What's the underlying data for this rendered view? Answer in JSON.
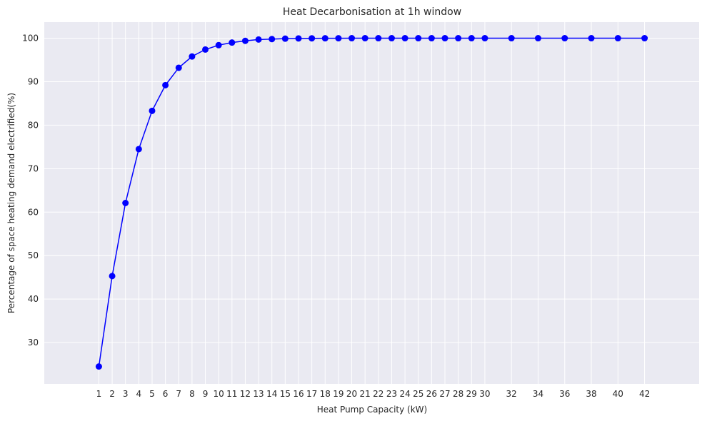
{
  "chart_data": {
    "type": "line",
    "title": "Heat Decarbonisation at 1h window",
    "xlabel": "Heat Pump Capacity (kW)",
    "ylabel": "Percentage of space heating demand electrified(%)",
    "grid": true,
    "xlim": [
      -3.1,
      46.1
    ],
    "ylim": [
      20.5,
      103.7
    ],
    "xticks": [
      1,
      2,
      3,
      4,
      5,
      6,
      7,
      8,
      9,
      10,
      11,
      12,
      13,
      14,
      15,
      16,
      17,
      18,
      19,
      20,
      21,
      22,
      23,
      24,
      25,
      26,
      27,
      28,
      29,
      30,
      32,
      34,
      36,
      38,
      40,
      42
    ],
    "yticks": [
      30,
      40,
      50,
      60,
      70,
      80,
      90,
      100
    ],
    "series": [
      {
        "color": "#0000ff",
        "marker": "circle",
        "x": [
          1,
          2,
          3,
          4,
          5,
          6,
          7,
          8,
          9,
          10,
          11,
          12,
          13,
          14,
          15,
          16,
          17,
          18,
          19,
          20,
          21,
          22,
          23,
          24,
          25,
          26,
          27,
          28,
          29,
          30,
          32,
          34,
          36,
          38,
          40,
          42
        ],
        "y": [
          24.5,
          45.3,
          62.1,
          74.5,
          83.3,
          89.2,
          93.2,
          95.8,
          97.4,
          98.4,
          99.0,
          99.4,
          99.7,
          99.8,
          99.9,
          99.95,
          99.97,
          99.98,
          99.99,
          100,
          100,
          100,
          100,
          100,
          100,
          100,
          100,
          100,
          100,
          100,
          100,
          100,
          100,
          100,
          100,
          100
        ]
      }
    ]
  }
}
